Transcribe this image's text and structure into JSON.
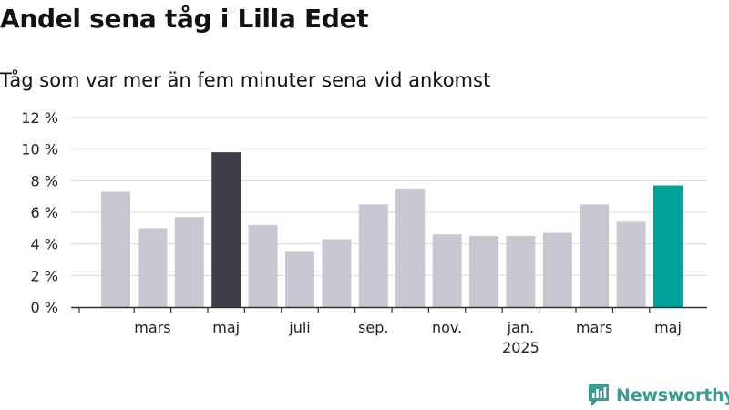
{
  "title": "Andel sena tåg i Lilla Edet",
  "subtitle": "Tåg som var mer än fem minuter sena vid ankomst",
  "brand": {
    "name": "Newsworthy",
    "color": "#3a9c93",
    "icon": "newsworthy-logo-icon"
  },
  "colors": {
    "default_bar": "#c8c7d2",
    "highlight_max": "#3e3d4a",
    "highlight_latest": "#00a19a",
    "grid": "#d9d9d9",
    "axis": "#333333"
  },
  "chart_data": {
    "type": "bar",
    "title": "Andel sena tåg i Lilla Edet",
    "subtitle": "Tåg som var mer än fem minuter sena vid ankomst",
    "xlabel": "",
    "ylabel": "",
    "ylim": [
      0,
      12
    ],
    "y_ticks": [
      0,
      2,
      4,
      6,
      8,
      10,
      12
    ],
    "y_tick_labels": [
      "0 %",
      "2 %",
      "4 %",
      "6 %",
      "8 %",
      "10 %",
      "12 %"
    ],
    "grid": true,
    "values": [
      7.3,
      5.0,
      5.7,
      9.8,
      5.2,
      3.5,
      4.3,
      6.5,
      7.5,
      4.6,
      4.5,
      4.5,
      4.7,
      6.5,
      5.4,
      7.7
    ],
    "highlight": {
      "max_index": 3,
      "latest_index": 15
    },
    "x_tick_labels": [
      {
        "label": "mars",
        "sublabel": "",
        "bar_index": 1
      },
      {
        "label": "maj",
        "sublabel": "",
        "bar_index": 3
      },
      {
        "label": "juli",
        "sublabel": "",
        "bar_index": 5
      },
      {
        "label": "sep.",
        "sublabel": "",
        "bar_index": 7
      },
      {
        "label": "nov.",
        "sublabel": "",
        "bar_index": 9
      },
      {
        "label": "jan.",
        "sublabel": "2025",
        "bar_index": 11
      },
      {
        "label": "mars",
        "sublabel": "",
        "bar_index": 13
      },
      {
        "label": "maj",
        "sublabel": "",
        "bar_index": 15
      }
    ]
  }
}
